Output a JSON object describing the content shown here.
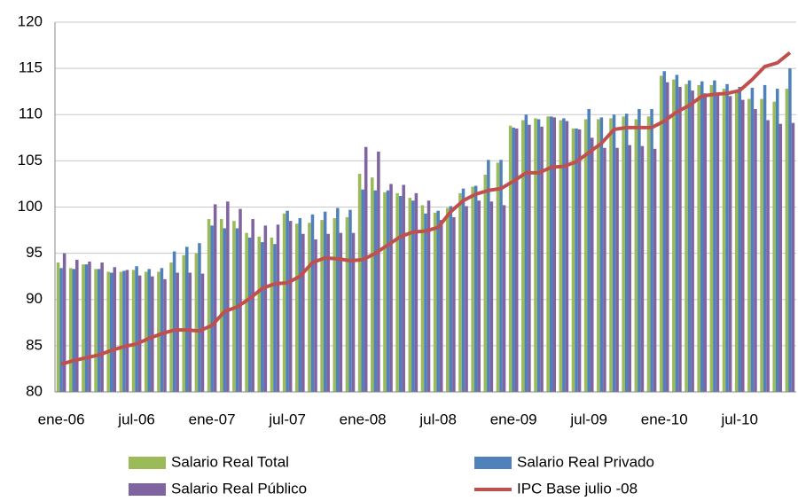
{
  "chart_data": {
    "type": "bar-line",
    "categories": [
      "ene-06",
      null,
      null,
      null,
      null,
      null,
      "jul-06",
      null,
      null,
      null,
      null,
      null,
      "ene-07",
      null,
      null,
      null,
      null,
      null,
      "jul-07",
      null,
      null,
      null,
      null,
      null,
      "ene-08",
      null,
      null,
      null,
      null,
      null,
      "jul-08",
      null,
      null,
      null,
      null,
      null,
      "ene-09",
      null,
      null,
      null,
      null,
      null,
      "jul-09",
      null,
      null,
      null,
      null,
      null,
      "ene-10",
      null,
      null,
      null,
      null,
      null,
      "jul-10",
      null,
      null,
      null,
      null
    ],
    "series": [
      {
        "name": "Salario Real Total",
        "color": "#9bbb59",
        "kind": "bar",
        "values": [
          94,
          93.4,
          93.8,
          93.3,
          93,
          93,
          93.2,
          93,
          93,
          94,
          94.8,
          95,
          98.7,
          98.7,
          98.5,
          97.2,
          96.8,
          96.7,
          99.3,
          98.2,
          98.3,
          98.6,
          98.8,
          98.9,
          103.6,
          103.2,
          101.6,
          101.5,
          101,
          100.2,
          99.4,
          99.9,
          101.5,
          102.2,
          103.5,
          104.8,
          108.8,
          109.4,
          109.6,
          109.8,
          109.4,
          108.5,
          109.5,
          109.5,
          109.6,
          109.8,
          109.5,
          109.8,
          114.2,
          113.8,
          113.3,
          113.2,
          113.2,
          112.8,
          112.6,
          111.7,
          111.7,
          111.4,
          112.8
        ]
      },
      {
        "name": "Salario Real Privado",
        "color": "#4f81bd",
        "kind": "bar",
        "values": [
          93.4,
          93.3,
          93.8,
          93.3,
          92.9,
          93.1,
          93.6,
          93.3,
          93.4,
          95.2,
          95.7,
          96.1,
          98,
          97.7,
          97.7,
          96.7,
          96.2,
          96,
          99.6,
          98.8,
          99.2,
          99.5,
          99.9,
          99.7,
          101.9,
          101.8,
          101.8,
          101.2,
          100.7,
          99.3,
          99.6,
          100.1,
          102,
          102.3,
          105.1,
          105.1,
          108.6,
          110,
          109.5,
          109.8,
          109.6,
          108.5,
          110.6,
          109.7,
          110,
          110.1,
          110.6,
          110.6,
          114.7,
          114.3,
          113.7,
          113.6,
          113.7,
          113.3,
          113,
          112.9,
          113.2,
          112.8,
          115
        ]
      },
      {
        "name": "Salario Real Público",
        "color": "#8064a2",
        "kind": "bar",
        "values": [
          95,
          94.3,
          94.1,
          94,
          93.5,
          93.2,
          92.6,
          92.5,
          92.2,
          92.9,
          92.9,
          92.8,
          100.3,
          100.6,
          99.8,
          98.7,
          98,
          98.1,
          98.5,
          97.1,
          96.5,
          97.1,
          97.2,
          97.2,
          106.5,
          106,
          102.5,
          102.4,
          101.5,
          100.7,
          98.6,
          98.9,
          100.1,
          100.7,
          100.6,
          100.2,
          108.5,
          108.9,
          108.7,
          109.7,
          109.3,
          108.4,
          107.5,
          106.4,
          106.4,
          106.7,
          106.6,
          106.3,
          113.5,
          113,
          112.6,
          112.3,
          112.3,
          112,
          111.6,
          110.6,
          109.4,
          109,
          109.1
        ]
      },
      {
        "name": "IPC Base julio -08",
        "color": "#c0504d",
        "kind": "line",
        "values": [
          83,
          83.4,
          83.7,
          84,
          84.5,
          84.9,
          85.2,
          85.8,
          86.3,
          86.7,
          86.7,
          86.6,
          87.2,
          88.7,
          89.2,
          90.1,
          91.2,
          91.7,
          91.8,
          92.5,
          94,
          94.5,
          94.4,
          94.2,
          94.3,
          95,
          95.9,
          96.8,
          97.3,
          97.4,
          97.8,
          99.5,
          100.7,
          101.4,
          101.8,
          102,
          102.8,
          103.7,
          103.7,
          104.3,
          104.4,
          104.9,
          105.9,
          106.9,
          108.4,
          108.6,
          108.6,
          108.6,
          109.3,
          110.3,
          111,
          112,
          112.2,
          112.3,
          112.6,
          113.8,
          115.2,
          115.6,
          116.7
        ]
      }
    ],
    "ylim": [
      80,
      120
    ],
    "yticks": [
      80,
      85,
      90,
      95,
      100,
      105,
      110,
      115,
      120
    ],
    "grid": true
  }
}
